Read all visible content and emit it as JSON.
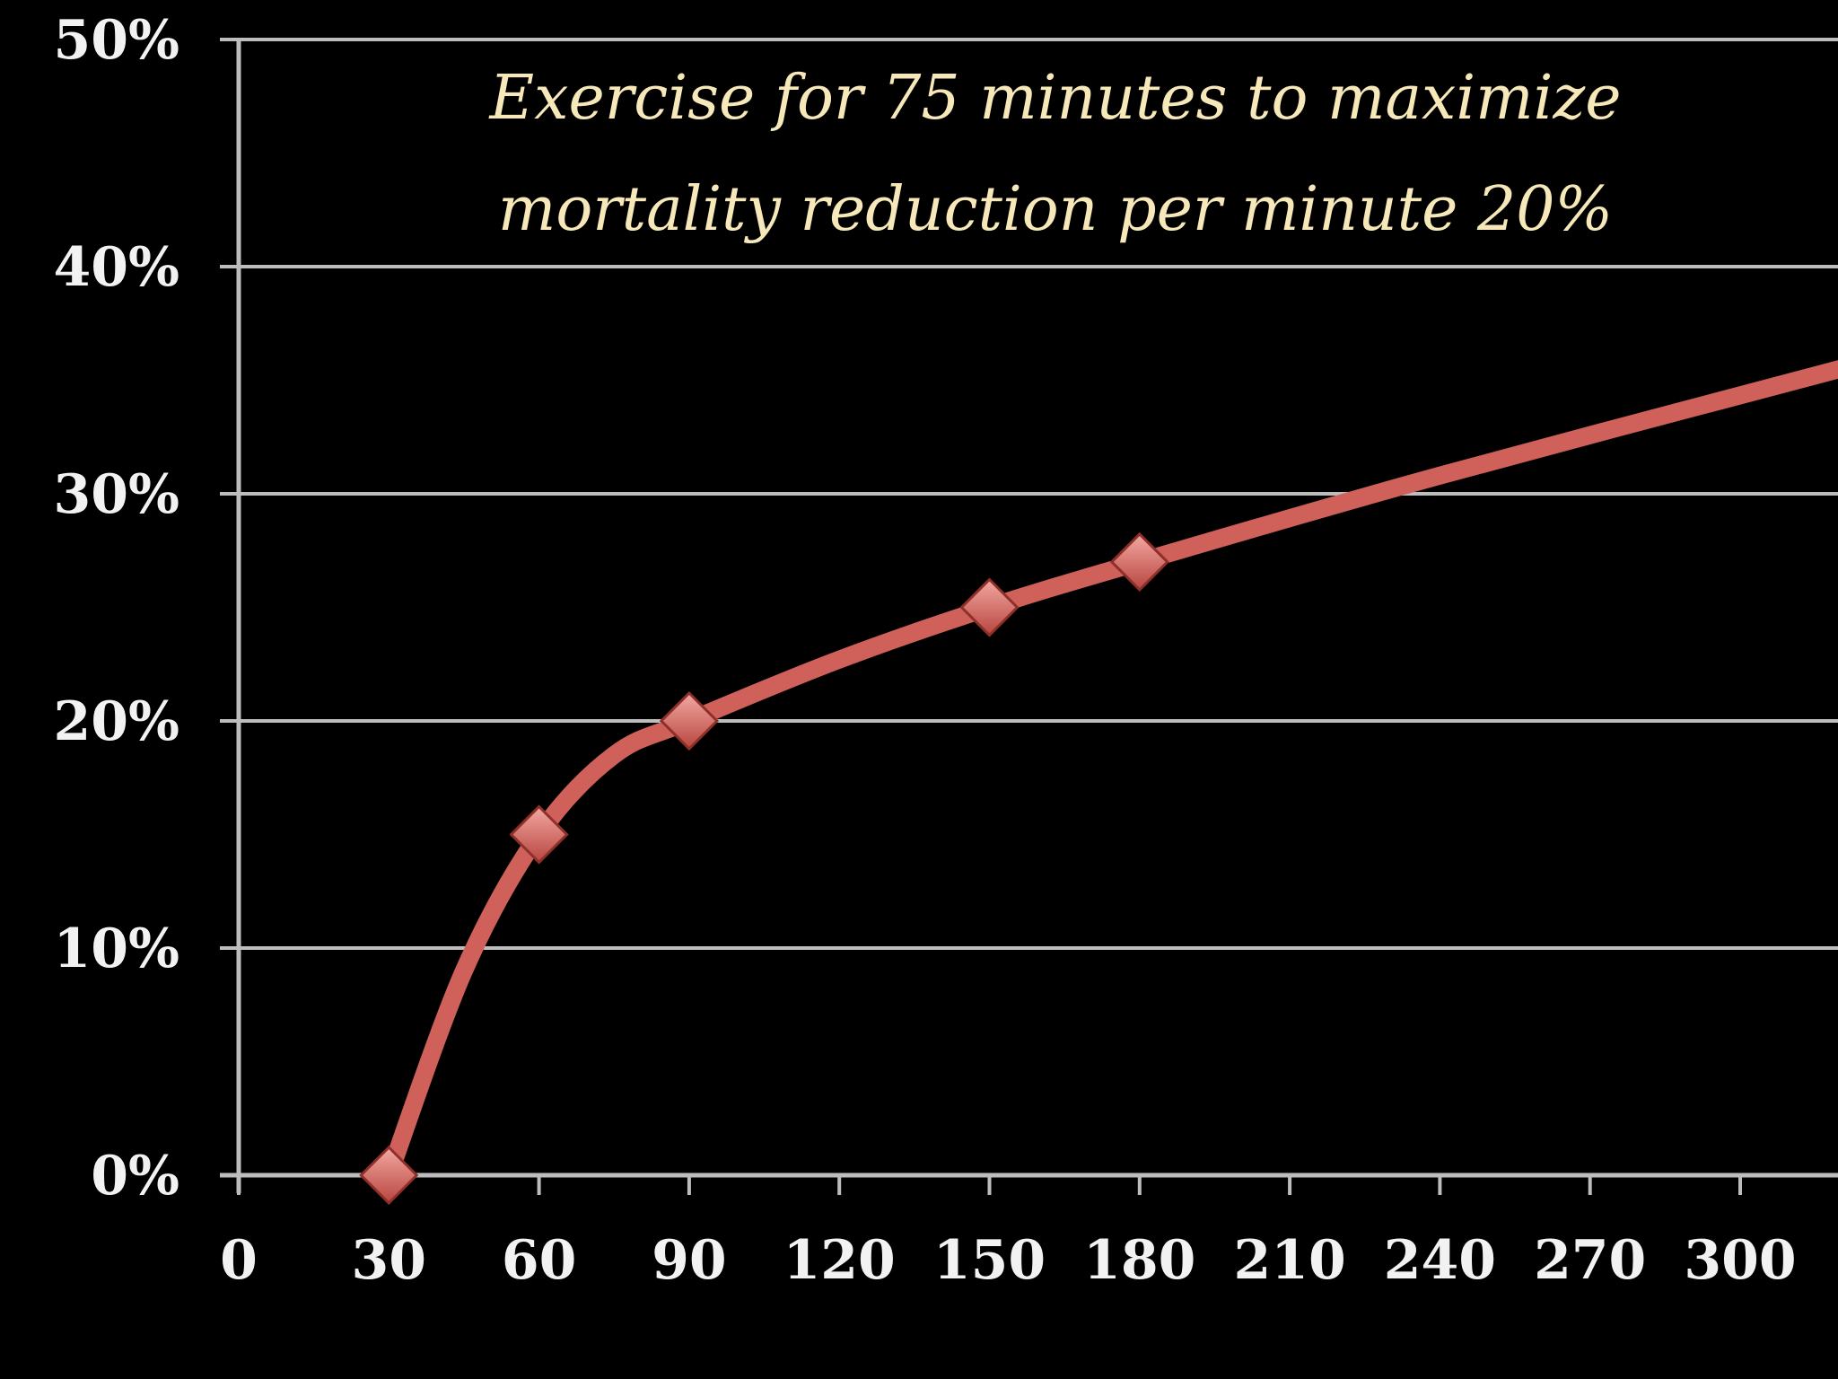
{
  "chart_data": {
    "type": "line",
    "title": "",
    "xlabel": "",
    "ylabel": "",
    "x_ticks": [
      "0",
      "30",
      "60",
      "90",
      "120",
      "150",
      "180",
      "210",
      "240",
      "270",
      "300"
    ],
    "y_ticks": [
      "0%",
      "10%",
      "20%",
      "30%",
      "40%",
      "50%"
    ],
    "xlim": [
      0,
      320
    ],
    "ylim": [
      0,
      50
    ],
    "grid": true,
    "series": [
      {
        "name": "",
        "color": "#d0605a",
        "markers": "diamond",
        "marker_points": [
          {
            "x": 30,
            "y": 0
          },
          {
            "x": 60,
            "y": 15
          },
          {
            "x": 90,
            "y": 20
          },
          {
            "x": 150,
            "y": 25
          },
          {
            "x": 180,
            "y": 27
          }
        ],
        "curve": [
          {
            "x": 30,
            "y": 0
          },
          {
            "x": 45,
            "y": 9
          },
          {
            "x": 60,
            "y": 15
          },
          {
            "x": 75,
            "y": 18.5
          },
          {
            "x": 90,
            "y": 20
          },
          {
            "x": 120,
            "y": 22.7
          },
          {
            "x": 150,
            "y": 25
          },
          {
            "x": 180,
            "y": 27
          },
          {
            "x": 240,
            "y": 30.8
          },
          {
            "x": 320,
            "y": 35.5
          }
        ]
      }
    ],
    "annotation": [
      "Exercise for 75 minutes to maximize",
      "mortality reduction per minute 20%"
    ]
  }
}
